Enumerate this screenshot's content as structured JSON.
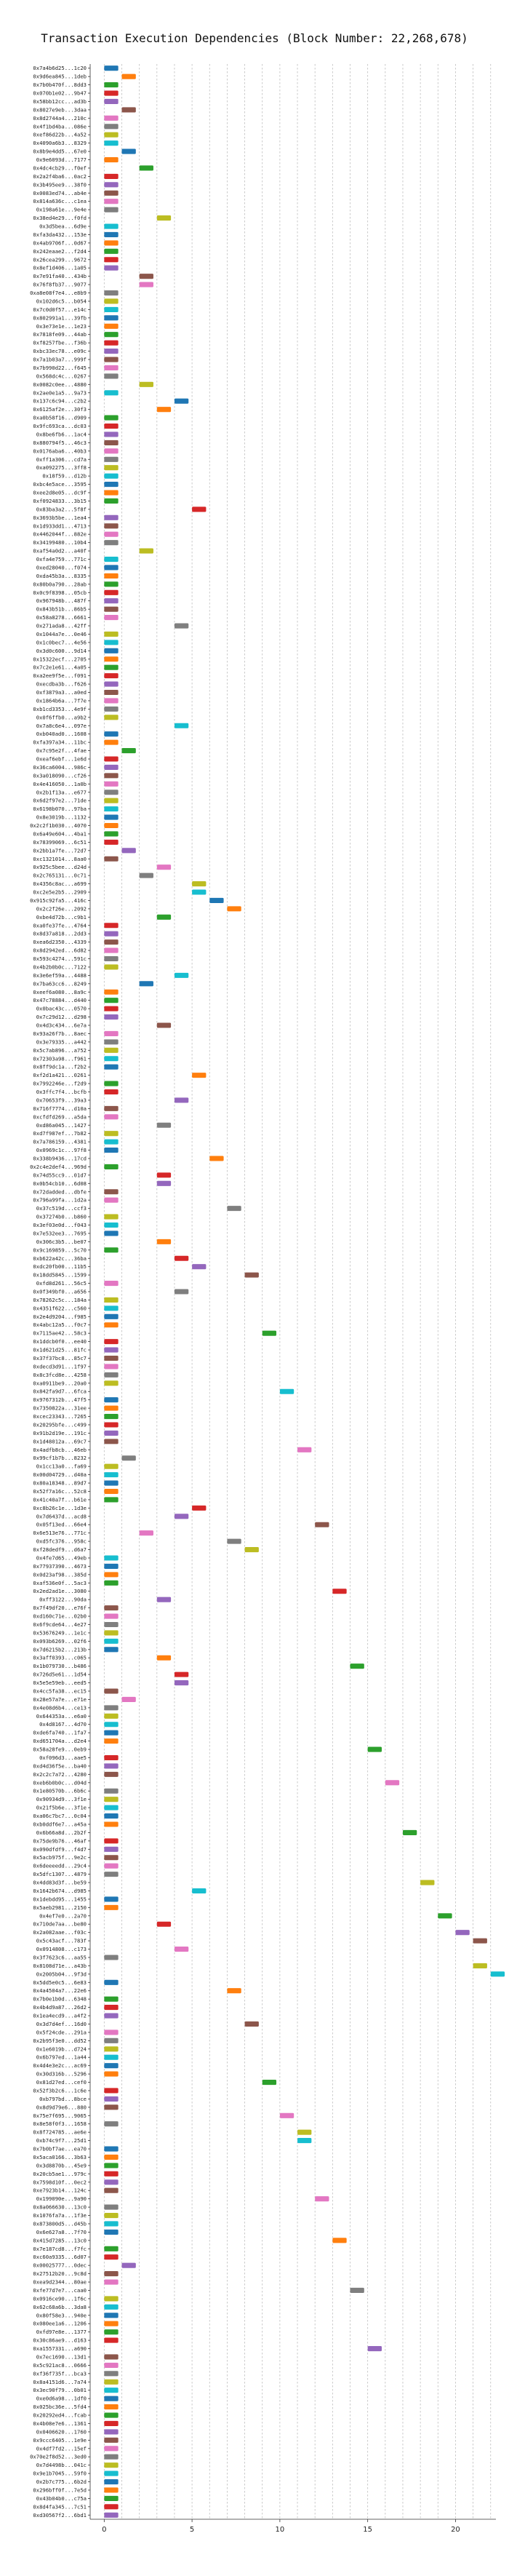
{
  "chart_data": {
    "type": "gantt",
    "title": "Transaction Execution Dependencies (Block Number: 22,268,678)",
    "xlabel": "",
    "ylabel": "",
    "xlim": [
      -0.8,
      22.3
    ],
    "xticks": [
      0,
      5,
      10,
      15,
      20
    ],
    "grid": "vertical",
    "bar_duration": 0.8,
    "transactions": [
      "0x7a4b6d25...1c20",
      "0x9d6ea845...1deb",
      "0x7b0b470f...8dd3",
      "0x070b1e02...9b47",
      "0x58bb12cc...ad3b",
      "0x8027e9eb...3daa",
      "0x8d2744a4...210c",
      "0x4f1bd4ba...086e",
      "0xef86d22b...4a52",
      "0x4090a6b3...8329",
      "0x8b9e4dd5...67e0",
      "0x9e6093d...7177",
      "0x4dc4cb29...f0ef",
      "0x2a2f4ba6...0ac2",
      "0x3b495ee9...38f0",
      "0x0083ed74...ab4e",
      "0x814a636c...c1ea",
      "0x198a61e...9e4e",
      "0x38ed4e29...f0fd",
      "0x3d5bea...6d9e",
      "0xfa3da432...153e",
      "0x4ab9706f...0d67",
      "0x242eaae2...f2d4",
      "0x26cea299...9672",
      "0x8ef1d406...1a05",
      "0x7e91fa40...434b",
      "0x76f8fb37...9077",
      "0xa8e08f7e4...e8b9",
      "0x102d6c5...b054",
      "0x7c0d0f57...e14c",
      "0x802991a1...39fb",
      "0x3e73e1e...1e23",
      "0x7818fe09...44ab",
      "0xf8257fbe...f36b",
      "0xbc33ec78...e09c",
      "0x7a1b03a7...999f",
      "0x7b990d22...f645",
      "0x568dc4c...0267",
      "0x0082c0ee...4880",
      "0x2ae0e1a5...9a73",
      "0x137c6c94...c2b2",
      "0x6125af2e...30f3",
      "0xa0b58f16...d909",
      "0x9fc693ca...dc03",
      "0x8be6fb6...1ac4",
      "0x880794f5...46c3",
      "0x0176aba6...40b3",
      "0xff1a306...cd7a",
      "0xa092275...3ff8",
      "0x18f59...d12b",
      "0xbc4e5ace...3595",
      "0xee2d8e05...dc9f",
      "0xf0924833...3b15",
      "0x83ba3a2...5f8f",
      "0x3693b5be...1ea4",
      "0x1d933dd1...4713",
      "0x4462044f...882e",
      "0x34199480...10b4",
      "0xaf54a0d2...a40f",
      "0xfa4e759...771c",
      "0xed28040...f074",
      "0xda45b3a...8335",
      "0x80b0a790...28ab",
      "0x0c9f8398...05cb",
      "0x967948b...487f",
      "0x843b51b...86b5",
      "0x58a8278...6661",
      "0x271ada8...42ff",
      "0x1044a7e...0e46",
      "0x1c0bec7...4e56",
      "0x3d0c600...9d14",
      "0x15322ecf...2705",
      "0x7c2e1e61...4a05",
      "0xa2ee9f5e...f091",
      "0xecdba3b...f626",
      "0xf3879a3...a0ed",
      "0x1864b6a...7f7e",
      "0xb1cd3353...4e9f",
      "0x0f6ffb0...a9b2",
      "0x7a8c6e4...097e",
      "0xb040ad0...1608",
      "0xfa397a34...11bc",
      "0x7c95e2f...4fae",
      "0xeaf6ebf...1e6d",
      "0x36ca6004...986c",
      "0x3a018090...cf26",
      "0x4e416050...1a0b",
      "0x2b1f13a...e677",
      "0x6d2f97e2...71de",
      "0x6198b070...97ba",
      "0x8e3019b...1132",
      "0x2c2f1b030...4070",
      "0x6a49e604...4ba1",
      "0x78399069...6c51",
      "0x2bb1a7fe...72d7",
      "0xc1321014...8aa0",
      "0x925c5bee...d24d",
      "0x2c765131...0c71",
      "0x4356c8ac...a699",
      "0xc2e5e2b5...2909",
      "0x915c92fa5...416c",
      "0x2c2f26e...2092",
      "0xbe4d72b...c9b1",
      "0xa0fe37fe...4764",
      "0x8d37a818...2dd3",
      "0xea6d2350...4339",
      "0x8d2942ed...6d82",
      "0x593c4274...591c",
      "0x4b2b0b0c...7122",
      "0x3e6ef59a...4488",
      "0x7ba63cc6...8249",
      "0xeef6a080...8a9c",
      "0x47c78884...d440",
      "0x0bac43c...0570",
      "0x7c29d12...d298",
      "0x4d3c434...6e7a",
      "0x93a26f7b...8aec",
      "0x3e79335...a442",
      "0x5c7ab896...a752",
      "0x72303a98...f961",
      "0x8ff9dc1a...f2b2",
      "0xf2d1a421...0261",
      "0x7992246e...f2d9",
      "0x3ffc7f4...bcfb",
      "0x70653f9...39a3",
      "0x716f7774...d10a",
      "0xcfdfd269...a5da",
      "0xd86a045...1427",
      "0xd7f987ef...7b82",
      "0x7a786159...4381",
      "0x0969c1c...97f8",
      "0x338b9436...17cd",
      "0x2c4e2def4...969d",
      "0x74d55cc9...01d7",
      "0x0b54cb10...6d08",
      "0x72dadded...dbfe",
      "0x796a99fa...1d2a",
      "0x37c519d...ccf3",
      "0x37274b0...b860",
      "0x3ef03e0d...f043",
      "0x7e532ee3...7695",
      "0x306c3b5...be07",
      "0x9c169859...5c70",
      "0xb622a42c...36ba",
      "0xdc20fb00...11b5",
      "0x18dd5845...1599",
      "0xfd8d261...56c5",
      "0x0f349bf0...a656",
      "0x78262c5c...184a",
      "0x4351f622...c560",
      "0x2e4d9204...f985",
      "0x4abc12a5...f0c7",
      "0x7115ae42...58c3",
      "0x1ddcb0f0...ee40",
      "0x1d621d25...81fc",
      "0x37f37bc8...85c7",
      "0xdecd3d91...1f97",
      "0x8c3fcd8e...4258",
      "0xa0911be9...20a0",
      "0x842fa9d7...6fca",
      "0x9767312b...47f5",
      "0x7350822a...31ee",
      "0xcec23343...7265",
      "0x20295bfe...c499",
      "0x91b2d19e...191c",
      "0x1d48012a...69c7",
      "0x4adfb8cb...46eb",
      "0x99cf1b7b...8232",
      "0x1cc13a0...fa69",
      "0x00d04729...d40a",
      "0x80a18348...89d7",
      "0x52f7a16c...52c8",
      "0x41c40a7f...b61e",
      "0xc8b26c1e...1d3e",
      "0x7d6437d...acd8",
      "0x05f13ed...66e4",
      "0x6e513e76...771c",
      "0xd5fc376...958c",
      "0xf28dedf9...d6a7",
      "0x4fe7d65...49eb",
      "0x77937390...4673",
      "0x0d23af98...385d",
      "0xaf536e0f...5ac3",
      "0x2ed2ad1e...3080",
      "0xff3122...90da",
      "0x7f49df20...e76f",
      "0xd160c71e...02b0",
      "0x6f9cde64...4e27",
      "0x53676249...1e1c",
      "0x093b6269...02f6",
      "0x7d6215b2...213b",
      "0x3aff0393...c065",
      "0x1b079730...b486",
      "0x726d5e61...1d54",
      "0x5e5e59eb...eed5",
      "0x4cc5fa38...ec15",
      "0x28e57a7e...e71e",
      "0x4e08d6b4...ce13",
      "0x644353a...e6a0",
      "0x4d8167...4d70",
      "0xde6fa740...1fa7",
      "0xd651704a...d2e4",
      "0x58a28fe9...0eb9",
      "0xf096d3...aae5",
      "0xd4d36f5e...ba40",
      "0x2c2c7a72...4280",
      "0xeb6b0b0c...d04d",
      "0x1e80570b...6b6c",
      "0x90934d9...3f1e",
      "0x21f5b6e...3f1e",
      "0xa06c7bc7...0c04",
      "0xb0ddf6e7...a45a",
      "0x6b66a8d...2b2f",
      "0x75de9b76...46af",
      "0x090dfdf9...f4d7",
      "0x5acb975f...9e2c",
      "0x6deeeedd...29c4",
      "0x5dfc1307...4879",
      "0x4dd83d3f...be59",
      "0x1642b674...d985",
      "0x1debdd95...1455",
      "0x5aeb2981...2150",
      "0x4ef7e0...2a70",
      "0x710de7aa...be80",
      "0x2a082aae...f03c",
      "0x5c43acf...783f",
      "0x0914808...c173",
      "0x3f7623c6...aa55",
      "0x8108d71e...a43b",
      "0x2005b04...9f3d",
      "0x5dd5e0c5...6e83",
      "0x4a4504a7...22e6",
      "0x7b0e1b0d...6348",
      "0x4b4d9a87...26d2",
      "0x1ea4ecd9...a4f2",
      "0x3d7d4ef...16d0",
      "0x5f24cde...291a",
      "0x2b95f3e0...dd52",
      "0x1e6019b...d724",
      "0x6b797ed...1a44",
      "0x4d4e3e2c...ac69",
      "0x30d316b...5296",
      "0x81d27ed...cef0",
      "0x52f3b2c6...1c6e",
      "0xb797bd...8bce",
      "0x8d9d79e6...880",
      "0x75e7f695...9065",
      "0x8e58f0f3...1658",
      "0x8f724785...ae6e",
      "0xb74c9f7...25d1",
      "0x7b0bf7ae...ea70",
      "0x5aca0166...3b63",
      "0x3d8870b...45e9",
      "0x20cb5ae1...979c",
      "0x7598d10f...0ec2",
      "0xe7923b14...124c",
      "0x199090e...9a90",
      "0x8a066630...13c0",
      "0x1076fa7a...1f3e",
      "0x873800d5...d45b",
      "0x6e627a8...7f70",
      "0x415d7285...13c0",
      "0x7e187cd8...f7fc",
      "0xc60a9335...6d07",
      "0x00025777...0dec",
      "0x27512b20...9c8d",
      "0xea9d2344...80ae",
      "0xfe77d7e7...caa0",
      "0x0916ce90...1f6c",
      "0x62c68a6b...3da8",
      "0x80f58e3...940e",
      "0x080ee1a6...1206",
      "0xfd97e8e...1377",
      "0x30c86ae9...d163",
      "0xa1557331...a690",
      "0x7ec1690...13d1",
      "0x5c921ac8...0666",
      "0xf36f735f...bca3",
      "0x8a4151d6...7a74",
      "0x3ec90f79...0b01",
      "0xe0d6a98...1df0",
      "0x025bc36e...5fd4",
      "0x20292ed4...fcab",
      "0x4b08e7e6...1361",
      "0x0406620...1760",
      "0x9ccc6405...1e9e",
      "0x4df7fd2...15ef",
      "0x70e2f8d52...3ed0",
      "0x7d4498b...041c",
      "0x9e1b7045...59f0",
      "0x2b7c775...6b2d",
      "0x296bff0f...7e5d",
      "0x43b04b0...c75a",
      "0x8d4fa345...7c51",
      "0xd30567f2...6bd1"
    ],
    "starts": [
      0,
      1,
      0,
      0,
      0,
      1,
      0,
      0,
      0,
      0,
      1,
      0,
      2,
      0,
      0,
      0,
      0,
      0,
      3,
      0,
      0,
      0,
      0,
      0,
      0,
      2,
      2,
      0,
      0,
      0,
      0,
      0,
      0,
      0,
      0,
      0,
      0,
      0,
      2,
      0,
      4,
      3,
      0,
      0,
      0,
      0,
      0,
      0,
      0,
      0,
      0,
      0,
      0,
      5,
      0,
      0,
      0,
      0,
      2,
      0,
      0,
      0,
      0,
      0,
      0,
      0,
      0,
      4,
      0,
      0,
      0,
      0,
      0,
      0,
      0,
      0,
      0,
      0,
      0,
      4,
      0,
      0,
      1,
      0,
      0,
      0,
      0,
      0,
      0,
      0,
      0,
      0,
      0,
      0,
      1,
      0,
      3,
      2,
      5,
      5,
      6,
      7,
      3,
      0,
      0,
      0,
      0,
      0,
      0,
      4,
      2,
      0,
      0,
      0,
      0,
      3,
      0,
      0,
      0,
      0,
      0,
      5,
      0,
      0,
      4,
      0,
      0,
      3,
      0,
      0,
      0,
      6,
      0,
      3,
      3,
      0,
      0,
      7,
      0,
      0,
      0,
      3,
      0,
      4,
      5,
      8,
      0,
      4,
      0,
      0,
      0,
      0,
      9,
      0,
      0,
      0,
      0,
      0,
      0,
      10,
      0,
      0,
      0,
      0,
      0,
      0,
      11,
      1,
      0,
      0,
      0,
      0,
      0,
      5,
      4,
      12,
      2,
      7,
      8,
      0,
      0,
      0,
      0,
      13,
      3,
      0,
      0,
      0,
      0,
      0,
      0,
      3,
      14,
      4,
      4,
      0,
      1,
      0,
      0,
      0,
      0,
      0,
      15,
      0,
      0,
      0,
      16,
      0,
      0,
      0,
      0,
      0,
      17,
      0,
      0,
      0,
      0,
      0,
      18,
      5,
      0,
      0,
      19,
      3,
      20,
      21,
      4,
      0,
      21,
      22,
      0,
      7,
      0,
      0,
      0,
      8,
      0,
      0,
      0,
      0,
      0,
      0,
      9,
      0,
      0,
      0,
      10,
      0,
      11,
      11,
      0,
      0,
      0,
      0,
      0,
      0,
      12,
      0,
      0,
      0,
      0,
      13,
      0,
      0,
      1,
      0,
      0,
      14,
      0,
      0,
      0,
      0,
      0,
      0,
      15,
      0,
      0,
      0,
      0,
      0,
      0,
      0,
      0,
      0
    ],
    "colors": [
      "#1f77b4",
      "#ff7f0e",
      "#2ca02c",
      "#d62728",
      "#9467bd",
      "#8c564b",
      "#e377c2",
      "#7f7f7f",
      "#bcbd22",
      "#17becf"
    ]
  }
}
